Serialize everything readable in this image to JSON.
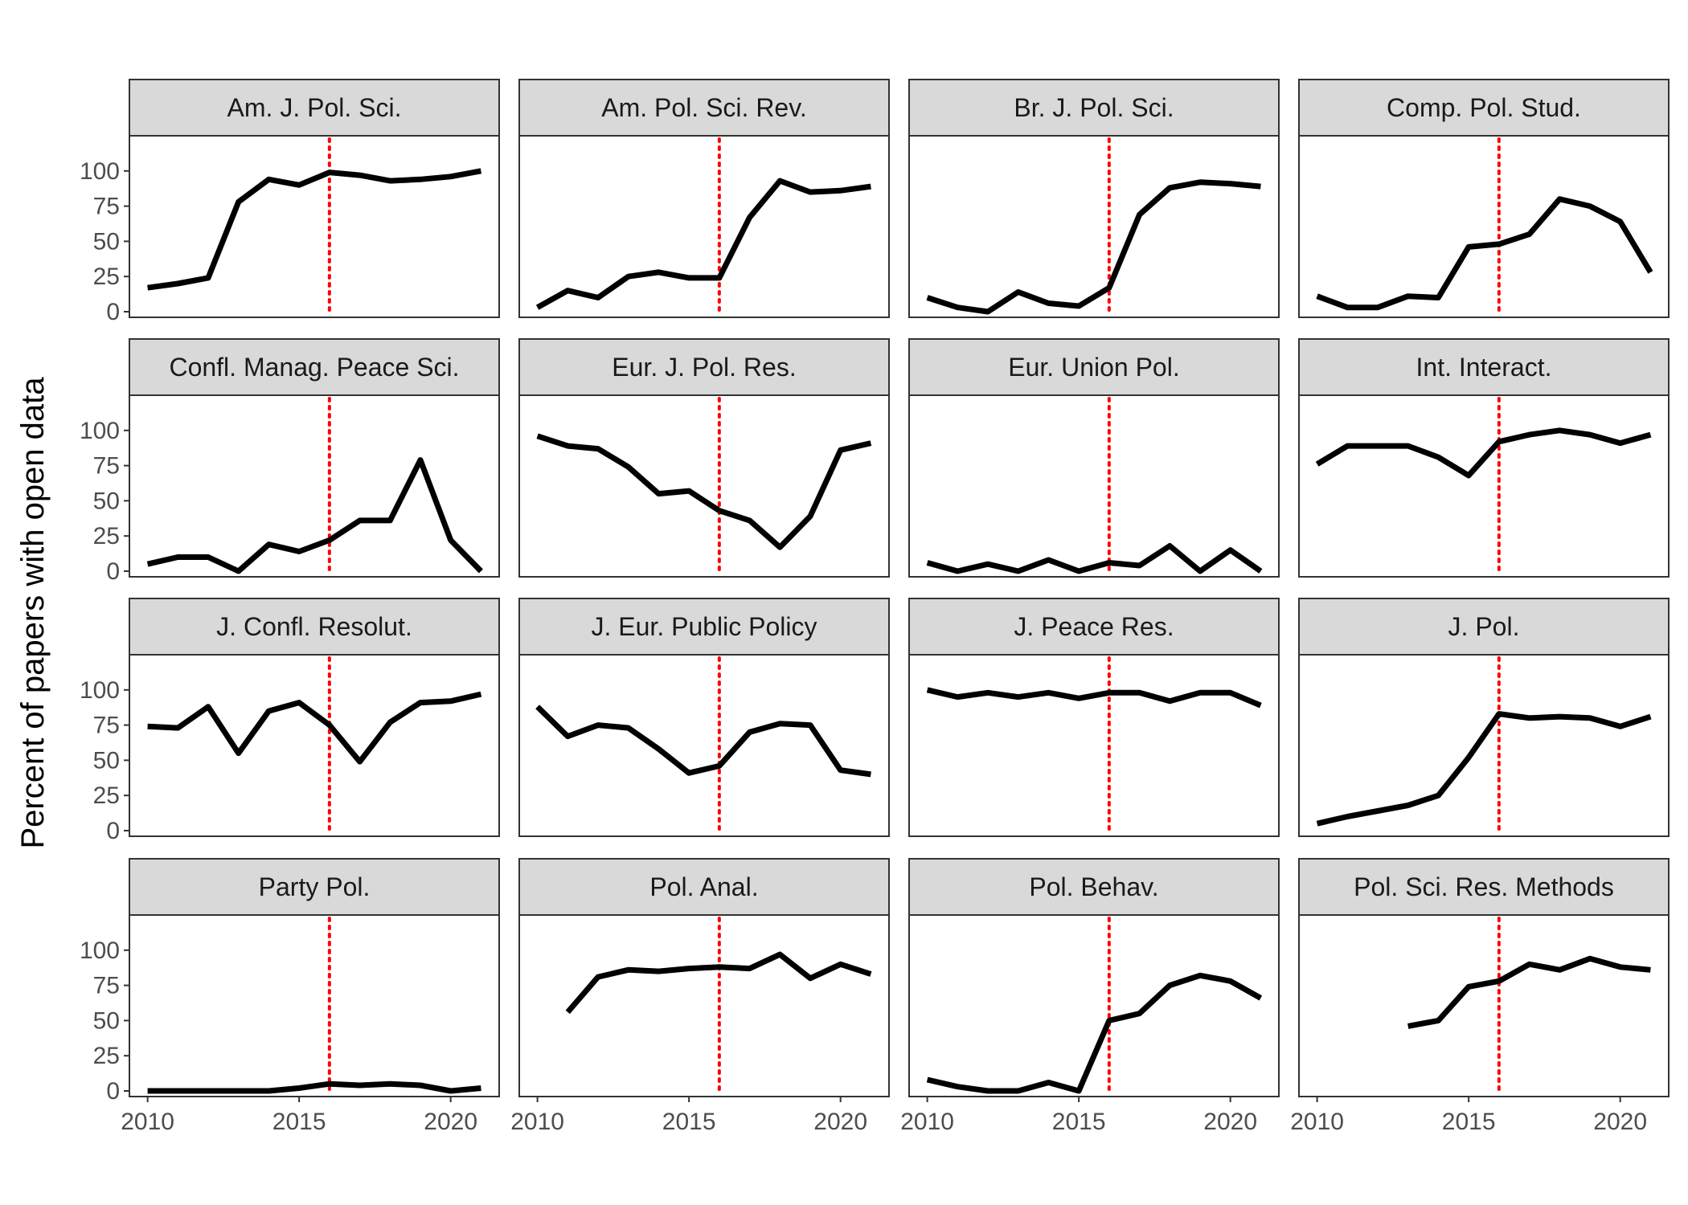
{
  "chart_data": {
    "type": "line",
    "ylabel": "Percent of papers with open data",
    "xlabel": "",
    "xlim": [
      2009.4,
      2021.6
    ],
    "ylim": [
      -4,
      125
    ],
    "x_ticks": [
      2010,
      2015,
      2020
    ],
    "x_tick_labels": [
      "2010",
      "2015",
      "2020"
    ],
    "y_ticks": [
      0,
      25,
      50,
      75,
      100
    ],
    "y_tick_labels": [
      "0",
      "25",
      "50",
      "75",
      "100"
    ],
    "reference_line": {
      "x": 2016,
      "style": "dotted",
      "color": "#ff0000"
    },
    "line_color": "#000000",
    "strip_color": "#d9d9d9",
    "facets": [
      {
        "title": "Am. J. Pol. Sci.",
        "x": [
          2010,
          2011,
          2012,
          2013,
          2014,
          2015,
          2016,
          2017,
          2018,
          2019,
          2020,
          2021
        ],
        "y": [
          17,
          20,
          24,
          78,
          94,
          90,
          99,
          97,
          93,
          94,
          96,
          100
        ]
      },
      {
        "title": "Am. Pol. Sci. Rev.",
        "x": [
          2010,
          2011,
          2012,
          2013,
          2014,
          2015,
          2016,
          2017,
          2018,
          2019,
          2020,
          2021
        ],
        "y": [
          3,
          15,
          10,
          25,
          28,
          24,
          24,
          67,
          93,
          85,
          86,
          89
        ]
      },
      {
        "title": "Br. J. Pol. Sci.",
        "x": [
          2010,
          2011,
          2012,
          2013,
          2014,
          2015,
          2016,
          2017,
          2018,
          2019,
          2020,
          2021
        ],
        "y": [
          10,
          3,
          0,
          14,
          6,
          4,
          17,
          69,
          88,
          92,
          91,
          89
        ]
      },
      {
        "title": "Comp. Pol. Stud.",
        "x": [
          2010,
          2011,
          2012,
          2013,
          2014,
          2015,
          2016,
          2017,
          2018,
          2019,
          2020,
          2021
        ],
        "y": [
          11,
          3,
          3,
          11,
          10,
          46,
          48,
          55,
          80,
          75,
          64,
          28
        ]
      },
      {
        "title": "Confl. Manag. Peace Sci.",
        "x": [
          2010,
          2011,
          2012,
          2013,
          2014,
          2015,
          2016,
          2017,
          2018,
          2019,
          2020,
          2021
        ],
        "y": [
          5,
          10,
          10,
          0,
          19,
          14,
          22,
          36,
          36,
          79,
          22,
          0
        ]
      },
      {
        "title": "Eur. J. Pol. Res.",
        "x": [
          2010,
          2011,
          2012,
          2013,
          2014,
          2015,
          2016,
          2017,
          2018,
          2019,
          2020,
          2021
        ],
        "y": [
          96,
          89,
          87,
          74,
          55,
          57,
          43,
          36,
          17,
          39,
          86,
          91
        ]
      },
      {
        "title": "Eur. Union Pol.",
        "x": [
          2010,
          2011,
          2012,
          2013,
          2014,
          2015,
          2016,
          2017,
          2018,
          2019,
          2020,
          2021
        ],
        "y": [
          6,
          0,
          5,
          0,
          8,
          0,
          6,
          4,
          18,
          0,
          15,
          0
        ]
      },
      {
        "title": "Int. Interact.",
        "x": [
          2010,
          2011,
          2012,
          2013,
          2014,
          2015,
          2016,
          2017,
          2018,
          2019,
          2020,
          2021
        ],
        "y": [
          76,
          89,
          89,
          89,
          81,
          68,
          92,
          97,
          100,
          97,
          91,
          97
        ]
      },
      {
        "title": "J. Confl. Resolut.",
        "x": [
          2010,
          2011,
          2012,
          2013,
          2014,
          2015,
          2016,
          2017,
          2018,
          2019,
          2020,
          2021
        ],
        "y": [
          74,
          73,
          88,
          55,
          85,
          91,
          75,
          49,
          77,
          91,
          92,
          97
        ]
      },
      {
        "title": "J. Eur. Public Policy",
        "x": [
          2010,
          2011,
          2012,
          2013,
          2014,
          2015,
          2016,
          2017,
          2018,
          2019,
          2020,
          2021
        ],
        "y": [
          88,
          67,
          75,
          73,
          58,
          41,
          46,
          70,
          76,
          75,
          43,
          40
        ]
      },
      {
        "title": "J. Peace Res.",
        "x": [
          2010,
          2011,
          2012,
          2013,
          2014,
          2015,
          2016,
          2017,
          2018,
          2019,
          2020,
          2021
        ],
        "y": [
          100,
          95,
          98,
          95,
          98,
          94,
          98,
          98,
          92,
          98,
          98,
          89
        ]
      },
      {
        "title": "J. Pol.",
        "x": [
          2010,
          2011,
          2012,
          2013,
          2014,
          2015,
          2016,
          2017,
          2018,
          2019,
          2020,
          2021
        ],
        "y": [
          5,
          10,
          14,
          18,
          25,
          52,
          83,
          80,
          81,
          80,
          74,
          81
        ]
      },
      {
        "title": "Party Pol.",
        "x": [
          2010,
          2011,
          2012,
          2013,
          2014,
          2015,
          2016,
          2017,
          2018,
          2019,
          2020,
          2021
        ],
        "y": [
          0,
          0,
          0,
          0,
          0,
          2,
          5,
          4,
          5,
          4,
          0,
          2
        ]
      },
      {
        "title": "Pol. Anal.",
        "x": [
          2011,
          2012,
          2013,
          2014,
          2015,
          2016,
          2017,
          2018,
          2019,
          2020,
          2021
        ],
        "y": [
          56,
          81,
          86,
          85,
          87,
          88,
          87,
          97,
          80,
          90,
          83
        ]
      },
      {
        "title": "Pol. Behav.",
        "x": [
          2010,
          2011,
          2012,
          2013,
          2014,
          2015,
          2016,
          2017,
          2018,
          2019,
          2020,
          2021
        ],
        "y": [
          8,
          3,
          0,
          0,
          6,
          0,
          50,
          55,
          75,
          82,
          78,
          66
        ]
      },
      {
        "title": "Pol. Sci. Res. Methods",
        "x": [
          2013,
          2014,
          2015,
          2016,
          2017,
          2018,
          2019,
          2020,
          2021
        ],
        "y": [
          46,
          50,
          74,
          78,
          90,
          86,
          94,
          88,
          86
        ]
      }
    ]
  }
}
